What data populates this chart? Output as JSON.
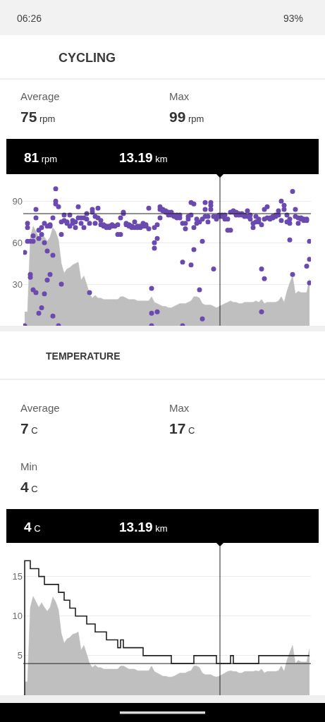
{
  "chart_data": [
    {
      "type": "scatter",
      "title": "CYCLING",
      "annotations": [
        "06:26",
        "93%",
        "Average",
        "75 rpm",
        "Max",
        "99 rpm",
        "81 rpm",
        "13.19 km"
      ],
      "categories": [
        null,
        null,
        null,
        null,
        null,
        null,
        null,
        null,
        null,
        null,
        null,
        null,
        null,
        null,
        null,
        null,
        null,
        null,
        null,
        null,
        null,
        null,
        null,
        null,
        null,
        null,
        null,
        null,
        null,
        null,
        null,
        null,
        null,
        null,
        null,
        null,
        null,
        null,
        null,
        null,
        null,
        null,
        null,
        null,
        null,
        null,
        null,
        null,
        null,
        null,
        null,
        null,
        null,
        null,
        null,
        null,
        null,
        null,
        null,
        null,
        null,
        null,
        null,
        null,
        null,
        null,
        null,
        null,
        null,
        null,
        null,
        null,
        null,
        null,
        null,
        null,
        null,
        null,
        null,
        null,
        null,
        null,
        null,
        null,
        null,
        null,
        null,
        null,
        null,
        null,
        null,
        null,
        null,
        null,
        null,
        null,
        null,
        null,
        null,
        null,
        null,
        null
      ],
      "series": [
        {
          "type": "area",
          "color": "#bfbfbf",
          "marker": "none",
          "values": [
            10,
            10,
            64,
            72,
            68,
            64,
            67,
            64,
            61,
            64,
            71,
            68,
            62,
            45,
            38,
            41,
            42,
            44,
            45,
            46,
            33,
            36,
            30,
            23,
            20,
            22,
            20,
            20,
            19,
            19,
            19,
            19,
            19,
            19,
            21,
            21,
            20,
            19,
            19,
            19,
            18,
            18,
            18,
            18,
            18,
            21,
            17,
            16,
            15,
            14,
            14,
            13,
            13,
            14,
            15,
            16,
            16,
            16,
            17,
            18,
            21,
            21,
            20,
            16,
            15,
            15,
            15,
            14,
            13,
            14,
            15,
            16,
            17,
            18,
            17,
            17,
            16,
            16,
            17,
            17,
            17,
            17,
            18,
            17,
            19,
            16,
            17,
            17,
            17,
            17,
            18,
            21,
            17,
            25,
            31,
            36,
            23,
            25,
            24,
            24,
            24,
            34
          ]
        },
        {
          "color": "#6a4aae",
          "values": [
            53,
            71,
            61,
            65,
            78,
            69,
            66,
            74,
            72,
            73,
            78,
            99,
            86,
            75,
            80,
            74,
            80,
            76,
            75,
            78,
            78,
            78,
            77,
            74,
            82,
            79,
            78,
            76,
            72,
            72,
            71,
            73,
            72,
            73,
            78,
            81,
            74,
            72,
            72,
            75,
            72,
            71,
            72,
            72,
            70,
            27,
            60,
            73,
            84,
            84,
            83,
            82,
            80,
            79,
            78,
            80,
            74,
            74,
            79,
            80,
            71,
            74,
            75,
            77,
            84,
            75,
            84,
            79,
            77,
            80,
            79,
            80,
            77,
            82,
            83,
            82,
            81,
            80,
            80,
            83,
            80,
            74,
            79,
            77,
            73,
            77,
            86,
            77,
            78,
            79,
            83,
            76,
            84,
            80,
            74,
            97,
            84,
            74,
            77,
            77,
            76,
            61
          ]
        },
        {
          "color": "#6a4aae",
          "values": [
            0,
            61,
            35,
            26,
            24,
            9,
            13,
            23,
            33,
            37,
            7,
            88,
            0,
            30,
            76,
            75,
            72,
            74,
            71,
            86,
            74,
            71,
            81,
            24,
            84,
            74,
            85,
            73,
            73,
            71,
            72,
            72,
            null,
            66,
            66,
            82,
            73,
            73,
            71,
            71,
            71,
            72,
            74,
            73,
            85,
            0,
            56,
            10,
            78,
            83,
            82,
            80,
            82,
            80,
            80,
            78,
            0,
            70,
            77,
            44,
            55,
            77,
            26,
            5,
            89,
            79,
            87,
            41,
            79,
            79,
            80,
            77,
            69,
            69,
            82,
            80,
            80,
            81,
            79,
            79,
            77,
            71,
            75,
            75,
            10,
            84,
            78,
            78,
            79,
            80,
            80,
            90,
            87,
            75,
            62,
            37,
            79,
            78,
            78,
            76,
            43,
            48
          ]
        },
        {
          "color": "#6a4aae",
          "values": [
            null,
            74,
            37,
            61,
            84,
            63,
            71,
            60,
            54,
            72,
            51,
            90,
            null,
            66,
            null,
            null,
            null,
            null,
            null,
            null,
            null,
            null,
            null,
            null,
            null,
            null,
            null,
            null,
            null,
            null,
            null,
            null,
            null,
            null,
            null,
            null,
            null,
            null,
            null,
            null,
            null,
            null,
            null,
            null,
            null,
            9,
            71,
            63,
            86,
            null,
            null,
            null,
            null,
            null,
            null,
            null,
            46,
            null,
            null,
            89,
            88,
            null,
            null,
            61,
            79,
            null,
            89,
            null,
            null,
            null,
            null,
            null,
            null,
            null,
            null,
            null,
            null,
            null,
            null,
            null,
            null,
            null,
            null,
            null,
            41,
            34,
            null,
            null,
            null,
            null,
            null,
            null,
            null,
            null,
            77,
            null,
            null,
            null,
            null,
            null,
            77,
            31
          ]
        }
      ],
      "ylim": [
        0,
        108
      ],
      "yticks": [
        30,
        60,
        90
      ],
      "grid": "y",
      "tick_labels": "y",
      "marker": "circle",
      "ref_lines": [
        {
          "axis": "y",
          "value": 81,
          "color": "#222222"
        }
      ]
    },
    {
      "type": "step",
      "title": "TEMPERATURE",
      "annotations": [
        "Average",
        "7 C",
        "Max",
        "17 C",
        "Min",
        "4 C",
        "4 C",
        "13.19 km"
      ],
      "categories": [
        null,
        null,
        null,
        null,
        null,
        null,
        null,
        null,
        null,
        null,
        null,
        null,
        null,
        null,
        null,
        null,
        null,
        null,
        null,
        null,
        null,
        null,
        null,
        null,
        null,
        null,
        null,
        null,
        null,
        null,
        null,
        null,
        null,
        null,
        null,
        null,
        null,
        null,
        null,
        null,
        null,
        null,
        null,
        null,
        null,
        null,
        null,
        null,
        null,
        null,
        null,
        null,
        null,
        null,
        null,
        null,
        null,
        null,
        null,
        null,
        null,
        null,
        null,
        null,
        null,
        null,
        null,
        null,
        null,
        null,
        null,
        null,
        null,
        null,
        null,
        null,
        null,
        null,
        null,
        null,
        null,
        null,
        null,
        null,
        null,
        null,
        null,
        null,
        null,
        null,
        null,
        null,
        null,
        null,
        null,
        null,
        null,
        null,
        null,
        null,
        null,
        null
      ],
      "series": [
        {
          "type": "area",
          "color": "#bfbfbf",
          "values": [
            1.7,
            1.7,
            11.1,
            12.5,
            11.8,
            11.1,
            11.7,
            11.1,
            10.6,
            11.1,
            12.4,
            11.8,
            10.8,
            7.8,
            6.6,
            7.1,
            7.3,
            7.7,
            7.8,
            8.0,
            5.7,
            6.3,
            5.2,
            4.0,
            3.5,
            3.8,
            3.5,
            3.5,
            3.3,
            3.3,
            3.3,
            3.3,
            3.3,
            3.3,
            3.7,
            3.7,
            3.5,
            3.3,
            3.3,
            3.3,
            3.1,
            3.1,
            3.1,
            3.1,
            3.1,
            3.7,
            3.0,
            2.8,
            2.6,
            2.4,
            2.4,
            2.3,
            2.3,
            2.4,
            2.6,
            2.8,
            2.8,
            2.8,
            3.0,
            3.1,
            3.7,
            3.7,
            3.5,
            2.8,
            2.6,
            2.6,
            2.6,
            2.4,
            2.3,
            2.4,
            2.6,
            2.8,
            3.0,
            3.1,
            3.0,
            3.0,
            2.8,
            2.8,
            3.0,
            3.0,
            3.0,
            3.0,
            3.1,
            3.0,
            3.3,
            2.8,
            3.0,
            3.0,
            3.0,
            3.0,
            3.1,
            3.7,
            3.0,
            4.4,
            5.4,
            6.3,
            4.0,
            4.4,
            4.2,
            4.2,
            4.2,
            5.9
          ]
        },
        {
          "color": "#222222",
          "values": [
            0,
            17,
            17,
            16,
            16,
            16,
            15,
            15,
            14,
            14,
            14,
            14,
            14,
            13,
            13,
            12,
            12,
            11,
            11,
            10,
            10,
            10,
            10,
            9,
            9,
            9,
            8,
            8,
            8,
            8,
            7,
            7,
            7,
            7,
            6,
            7,
            6,
            6,
            6,
            6,
            6,
            6,
            6,
            5,
            5,
            5,
            5,
            5,
            5,
            5,
            5,
            5,
            5,
            4,
            4,
            4,
            4,
            4,
            4,
            4,
            4,
            5,
            5,
            5,
            5,
            5,
            5,
            5,
            5,
            4,
            4,
            4,
            4,
            4,
            5,
            4,
            4,
            4,
            4,
            4,
            4,
            4,
            4,
            4,
            5,
            5,
            5,
            5,
            5,
            5,
            5,
            5,
            5,
            5,
            5,
            5,
            5,
            5,
            5,
            5,
            5,
            5
          ]
        }
      ],
      "ylim": [
        0,
        18.8
      ],
      "yticks": [
        5,
        10,
        15
      ],
      "grid": "y",
      "tick_labels": "y",
      "ref_lines": [
        {
          "axis": "y",
          "value": 4,
          "color": "#222222"
        }
      ]
    }
  ]
}
